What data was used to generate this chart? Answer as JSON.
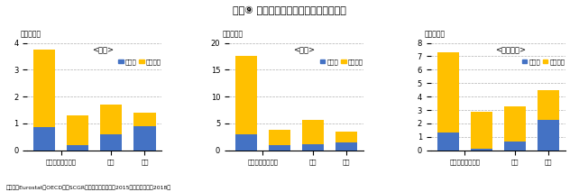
{
  "title": "図表⑨ 日米欧の最終需要別の生産誘発額",
  "footer": "（出所：Eurostat、OECDよりSCGR作成）（注）日米は2015年、ユーロ圏は2018年",
  "panels": [
    {
      "label": "<日本>",
      "ylabel": "（兆ドル）",
      "ylim": [
        0,
        4
      ],
      "yticks": [
        0,
        1,
        2,
        3,
        4
      ],
      "manufacturing": [
        0.85,
        0.2,
        0.6,
        0.9
      ],
      "non_manufacturing": [
        2.9,
        1.1,
        1.1,
        0.5
      ]
    },
    {
      "label": "<米国>",
      "ylabel": "（兆ドル）",
      "ylim": [
        0,
        20
      ],
      "yticks": [
        0,
        5,
        10,
        15,
        20
      ],
      "manufacturing": [
        3.0,
        1.0,
        1.2,
        1.5
      ],
      "non_manufacturing": [
        14.5,
        2.8,
        4.5,
        2.0
      ]
    },
    {
      "label": "<ユーロ圏>",
      "ylabel": "（兆ドル）",
      "ylim": [
        0,
        8
      ],
      "yticks": [
        0,
        1,
        2,
        3,
        4,
        5,
        6,
        7,
        8
      ],
      "manufacturing": [
        1.3,
        0.1,
        0.65,
        2.3
      ],
      "non_manufacturing": [
        6.0,
        2.8,
        2.65,
        2.2
      ]
    }
  ],
  "color_manufacturing": "#4472C4",
  "color_non_manufacturing": "#FFC000",
  "legend_manufacturing": "製造業",
  "legend_non_manufacturing": "非製造業",
  "bar_width": 0.65,
  "background_color": "#ffffff",
  "grid_color": "#b0b0b0"
}
